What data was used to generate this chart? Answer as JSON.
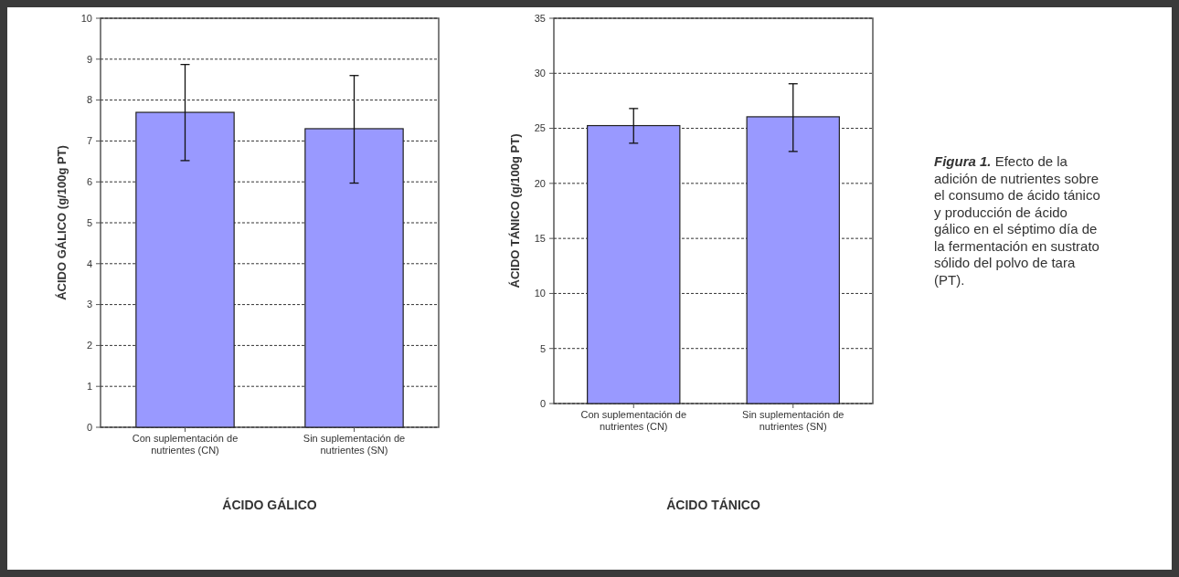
{
  "chart_data": [
    {
      "type": "bar",
      "categories": [
        "Con suplementación de nutrientes (CN)",
        "Sin suplementación de nutrientes (SN)"
      ],
      "values": [
        7.7,
        7.3
      ],
      "errors": [
        [
          6.52,
          8.87
        ],
        [
          5.97,
          8.6
        ]
      ],
      "color": "#9999ff",
      "ylim": [
        0,
        10
      ],
      "yticks": [
        0,
        1,
        2,
        3,
        4,
        5,
        6,
        7,
        8,
        9,
        10
      ],
      "grid": "y",
      "xlabel": "ÁCIDO GÁLICO",
      "ylabel": "ÁCIDO GÁLICO (g/100g PT)"
    },
    {
      "type": "bar",
      "categories": [
        "Con suplementación de nutrientes (CN)",
        "Sin suplementación de nutrientes (SN)"
      ],
      "values": [
        25.25,
        26.05
      ],
      "errors": [
        [
          23.65,
          26.8
        ],
        [
          22.9,
          29.05
        ]
      ],
      "color": "#9999ff",
      "ylim": [
        0,
        35
      ],
      "yticks": [
        0,
        5,
        10,
        15,
        20,
        25,
        30,
        35
      ],
      "grid": "y",
      "xlabel": "ÁCIDO TÁNICO",
      "ylabel": "ÁCIDO TÁNICO (g/100g PT)"
    },
    {
      "type": "other",
      "annotations": [
        "Figura 1.",
        "Efecto de la adición de nutrientes sobre el consumo de ácido tánico y producción de ácido gálico en el séptimo día de la fermentación en sustrato sólido del polvo de tara (PT)."
      ]
    }
  ]
}
